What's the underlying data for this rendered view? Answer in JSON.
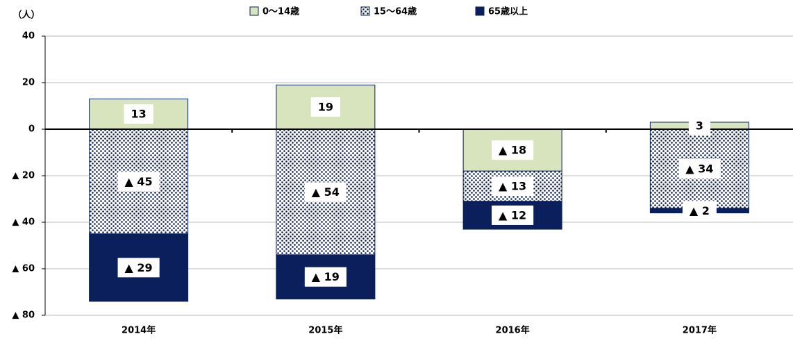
{
  "chart_data": {
    "type": "bar",
    "stacked": true,
    "unit_label": "（人）",
    "categories": [
      "2014年",
      "2015年",
      "2016年",
      "2017年"
    ],
    "series": [
      {
        "name": "0〜14歳",
        "color": "#d7e4bd",
        "pattern": "solid",
        "values": [
          13,
          19,
          -18,
          3
        ],
        "value_labels": [
          "13",
          "19",
          "▲ 18",
          "3"
        ]
      },
      {
        "name": "15〜64歳",
        "color": "#0a1f5c",
        "pattern": "dots",
        "values": [
          -45,
          -54,
          -13,
          -34
        ],
        "value_labels": [
          "▲ 45",
          "▲ 54",
          "▲ 13",
          "▲ 34"
        ]
      },
      {
        "name": "65歳以上",
        "color": "#0a1f5c",
        "pattern": "solid",
        "values": [
          -29,
          -19,
          -12,
          -2
        ],
        "value_labels": [
          "▲ 29",
          "▲ 19",
          "▲ 12",
          "▲ 2"
        ]
      }
    ],
    "ylim": [
      -80,
      40
    ],
    "yticks": [
      40,
      20,
      0,
      {
        "value": -20,
        "label": "▲ 20"
      },
      {
        "value": -40,
        "label": "▲ 40"
      },
      {
        "value": -60,
        "label": "▲ 60"
      },
      {
        "value": -80,
        "label": "▲ 80"
      }
    ],
    "grid": true,
    "legend": "top"
  }
}
